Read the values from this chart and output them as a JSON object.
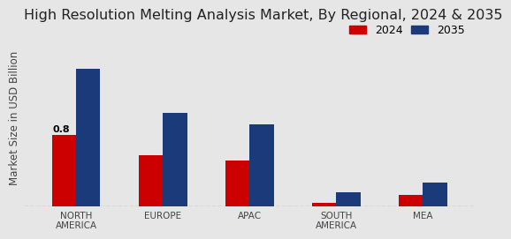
{
  "title": "High Resolution Melting Analysis Market, By Regional, 2024 & 2035",
  "ylabel": "Market Size in USD Billion",
  "categories": [
    "NORTH\nAMERICA",
    "EUROPE",
    "APAC",
    "SOUTH\nAMERICA",
    "MEA"
  ],
  "values_2024": [
    0.8,
    0.58,
    0.52,
    0.04,
    0.13
  ],
  "values_2035": [
    1.55,
    1.05,
    0.92,
    0.16,
    0.27
  ],
  "color_2024": "#cc0000",
  "color_2035": "#1a3a7a",
  "background_color": "#e6e6e6",
  "annotation_text": "0.8",
  "legend_labels": [
    "2024",
    "2035"
  ],
  "bar_width": 0.28,
  "title_fontsize": 11.5,
  "axis_label_fontsize": 8.5,
  "tick_fontsize": 7.5,
  "legend_fontsize": 9,
  "annotation_fontsize": 8,
  "ylim": [
    0,
    2.0
  ]
}
